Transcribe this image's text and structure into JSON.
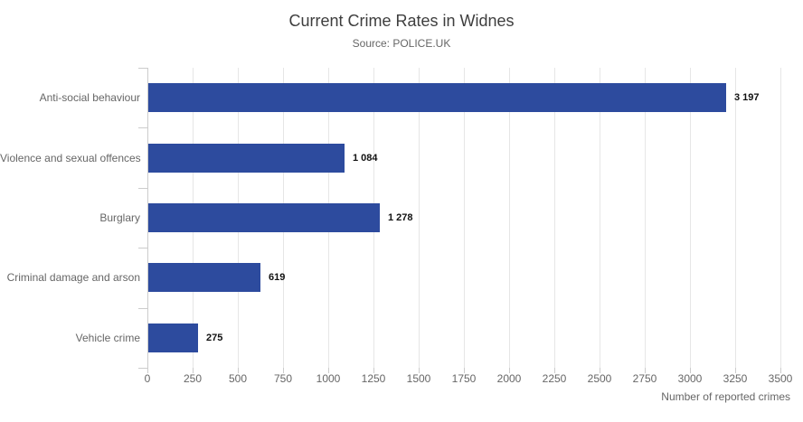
{
  "header": {
    "title": "Current Crime Rates in Widnes",
    "subtitle": "Source: POLICE.UK"
  },
  "chart_data": {
    "type": "bar",
    "orientation": "horizontal",
    "title": "Current Crime Rates in Widnes",
    "subtitle": "Source: POLICE.UK",
    "categories": [
      "Anti-social behaviour",
      "Violence and sexual offences",
      "Burglary",
      "Criminal damage and arson",
      "Vehicle crime"
    ],
    "values": [
      3197,
      1084,
      1278,
      619,
      275
    ],
    "value_labels": [
      "3 197",
      "1 084",
      "1 278",
      "619",
      "275"
    ],
    "xlabel": "Number of reported crimes",
    "xlim": [
      0,
      3500
    ],
    "xticks": [
      0,
      250,
      500,
      750,
      1000,
      1250,
      1500,
      1750,
      2000,
      2250,
      2500,
      2750,
      3000,
      3250,
      3500
    ],
    "grid": "vertical-only",
    "legend": "none",
    "colors": {
      "bar": "#2d4b9e",
      "value_label": "#111111",
      "axis_text": "#666666",
      "gridline": "#e6e6e6",
      "axis_line": "#cccccc",
      "title": "#3e3e3e"
    }
  }
}
